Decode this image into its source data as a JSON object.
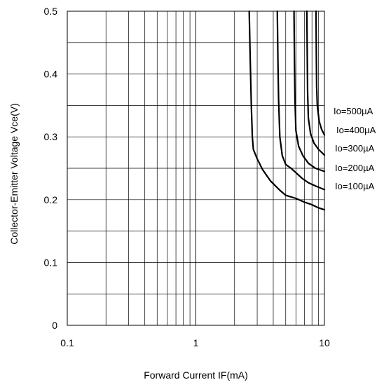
{
  "chart_data": {
    "type": "line",
    "title": "",
    "xlabel": "Forward Current IF(mA)",
    "ylabel": "Collector-Emitter Voltage Vce(V)",
    "x_scale": "log",
    "xlim": [
      0.1,
      10
    ],
    "ylim": [
      0,
      0.5
    ],
    "grid": true,
    "x_ticks": [
      {
        "value": 0.1,
        "label": "0.1"
      },
      {
        "value": 1,
        "label": "1"
      },
      {
        "value": 10,
        "label": "10"
      }
    ],
    "y_ticks": [
      {
        "value": 0,
        "label": "0"
      },
      {
        "value": 0.1,
        "label": "0.1"
      },
      {
        "value": 0.2,
        "label": "0.2"
      },
      {
        "value": 0.3,
        "label": "0.3"
      },
      {
        "value": 0.4,
        "label": "0.4"
      },
      {
        "value": 0.5,
        "label": "0.5"
      }
    ],
    "legend_placement": "right of plot, at series ends",
    "series": [
      {
        "name": "Io=100µA",
        "x": [
          2.6,
          2.65,
          2.7,
          2.75,
          2.8,
          3.0,
          3.3,
          3.8,
          4.5,
          5.0,
          6.0,
          7.0,
          8.0,
          9.0,
          10.0
        ],
        "y": [
          0.5,
          0.42,
          0.35,
          0.3,
          0.28,
          0.265,
          0.248,
          0.23,
          0.215,
          0.207,
          0.202,
          0.196,
          0.192,
          0.187,
          0.184
        ]
      },
      {
        "name": "Io=200µA",
        "x": [
          4.3,
          4.35,
          4.4,
          4.5,
          4.7,
          5.0,
          5.5,
          6.0,
          6.7,
          7.5,
          8.5,
          10.0
        ],
        "y": [
          0.5,
          0.42,
          0.36,
          0.3,
          0.27,
          0.256,
          0.25,
          0.243,
          0.234,
          0.227,
          0.222,
          0.216
        ]
      },
      {
        "name": "Io=300µA",
        "x": [
          5.8,
          5.85,
          5.9,
          6.0,
          6.3,
          6.8,
          7.5,
          8.5,
          10.0
        ],
        "y": [
          0.5,
          0.42,
          0.36,
          0.31,
          0.285,
          0.27,
          0.258,
          0.25,
          0.245
        ]
      },
      {
        "name": "Io=400µA",
        "x": [
          7.3,
          7.35,
          7.4,
          7.5,
          7.8,
          8.3,
          9.0,
          10.0
        ],
        "y": [
          0.5,
          0.43,
          0.37,
          0.33,
          0.305,
          0.29,
          0.28,
          0.271
        ]
      },
      {
        "name": "Io=500µA",
        "x": [
          8.6,
          8.65,
          8.7,
          8.8,
          9.1,
          9.5,
          10.0
        ],
        "y": [
          0.5,
          0.43,
          0.38,
          0.35,
          0.325,
          0.312,
          0.303
        ]
      }
    ]
  }
}
